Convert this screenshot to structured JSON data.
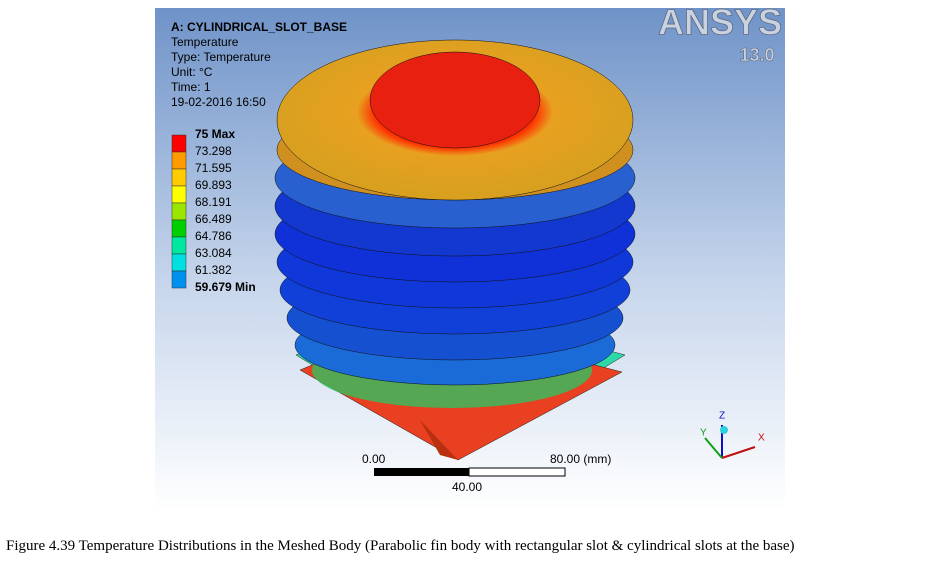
{
  "viewport": {
    "header": {
      "model": "A: CYLINDRICAL_SLOT_BASE",
      "result": "Temperature",
      "type": "Type: Temperature",
      "unit": "Unit: °C",
      "time": "Time: 1",
      "date": "19-02-2016 16:50"
    },
    "legend": [
      "75 Max",
      "73.298",
      "71.595",
      "69.893",
      "68.191",
      "66.489",
      "64.786",
      "63.084",
      "61.382",
      "59.679 Min"
    ],
    "logo": {
      "name": "ANSYS",
      "version": "13.0"
    },
    "scale_bar": {
      "start": "0.00",
      "end": "80.00 (mm)",
      "middle": "40.00"
    },
    "triad": {
      "z": "Z",
      "y": "Y",
      "x": "X"
    }
  },
  "caption": "Figure 4.39 Temperature Distributions in the Meshed Body (Parabolic fin body with rectangular slot & cylindrical slots at the base)"
}
